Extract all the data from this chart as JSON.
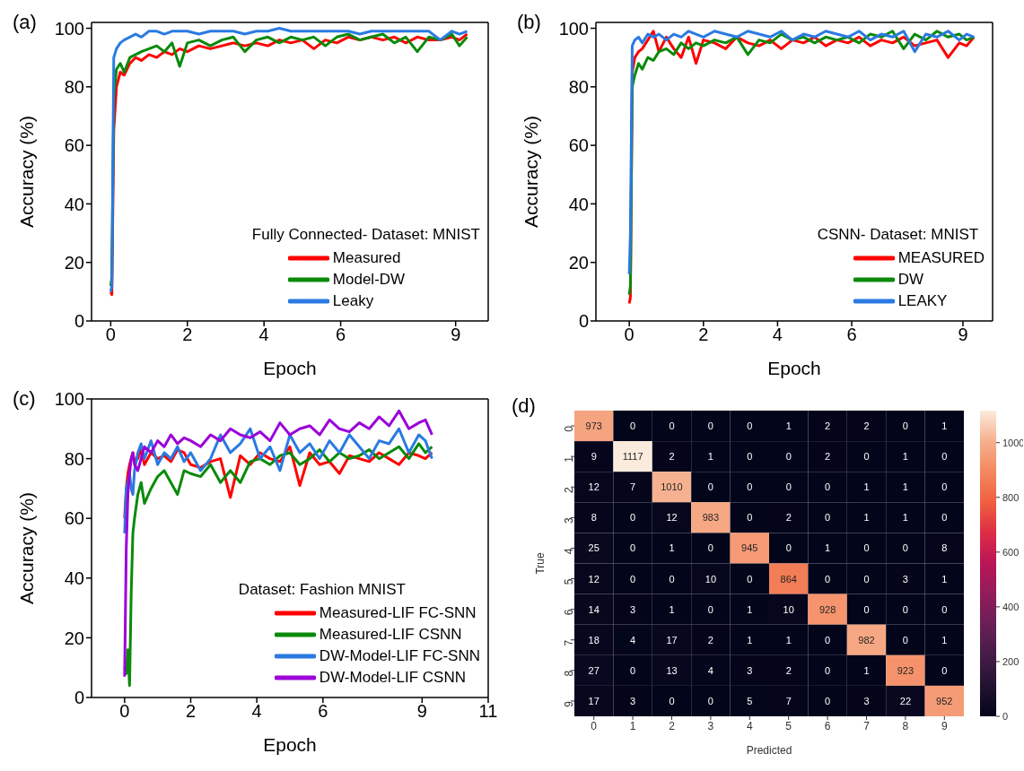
{
  "chart_data": [
    {
      "type": "line",
      "title": "(a)",
      "xlabel": "Epoch",
      "ylabel": "Accuracy (%)",
      "legend_title": "Fully Connected- Dataset: MNIST",
      "legend": "bottom right",
      "xlim": [
        -0.5,
        9.85
      ],
      "ylim": [
        0,
        102
      ],
      "xticks": [
        0,
        2,
        4,
        6,
        9
      ],
      "yticks": [
        0,
        20,
        40,
        60,
        80,
        100
      ],
      "x": [
        0,
        0.03,
        0.08,
        0.15,
        0.25,
        0.35,
        0.5,
        0.65,
        0.8,
        1.0,
        1.2,
        1.4,
        1.6,
        1.8,
        2.0,
        2.3,
        2.6,
        2.9,
        3.2,
        3.5,
        3.8,
        4.1,
        4.4,
        4.7,
        5.0,
        5.3,
        5.6,
        5.9,
        6.2,
        6.5,
        6.8,
        7.1,
        7.4,
        7.7,
        8.0,
        8.3,
        8.6,
        8.9,
        9.1,
        9.3
      ],
      "series": [
        {
          "name": "Measured",
          "color": "#ff0000",
          "values": [
            10,
            9,
            65,
            80,
            85,
            84,
            88,
            90,
            89,
            91,
            90,
            92,
            91,
            93,
            92,
            94,
            93,
            94,
            95,
            94,
            95,
            94,
            96,
            95,
            96,
            93,
            96,
            95,
            97,
            96,
            97,
            96,
            97,
            95,
            97,
            96,
            96,
            97,
            96,
            98
          ]
        },
        {
          "name": "Model-DW",
          "color": "#0a8a0a",
          "values": [
            12,
            15,
            76,
            86,
            88,
            85,
            90,
            91,
            92,
            93,
            94,
            92,
            95,
            87,
            95,
            96,
            94,
            96,
            97,
            92,
            96,
            97,
            95,
            97,
            96,
            97,
            94,
            97,
            98,
            96,
            97,
            98,
            95,
            97,
            92,
            97,
            96,
            98,
            94,
            97
          ]
        },
        {
          "name": "Leaky",
          "color": "#2a7ae2",
          "values": [
            10,
            12,
            90,
            93,
            95,
            96,
            97,
            98,
            97,
            99,
            99,
            98,
            99,
            99,
            99,
            98,
            99,
            99,
            99,
            98,
            99,
            99,
            100,
            99,
            99,
            99,
            99,
            99,
            99,
            98,
            99,
            99,
            99,
            99,
            99,
            99,
            96,
            99,
            98,
            99
          ]
        }
      ]
    },
    {
      "type": "line",
      "title": "(b)",
      "xlabel": "Epoch",
      "ylabel": "Accuracy (%)",
      "legend_title": "CSNN- Dataset: MNIST",
      "legend": "bottom right",
      "xlim": [
        -0.9,
        9.8
      ],
      "ylim": [
        0,
        102
      ],
      "xticks": [
        0,
        2,
        4,
        6,
        9
      ],
      "yticks": [
        0,
        20,
        40,
        60,
        80,
        100
      ],
      "x": [
        0,
        0.03,
        0.08,
        0.15,
        0.25,
        0.35,
        0.5,
        0.65,
        0.8,
        1.0,
        1.2,
        1.4,
        1.6,
        1.8,
        2.0,
        2.3,
        2.6,
        2.9,
        3.2,
        3.5,
        3.8,
        4.1,
        4.4,
        4.7,
        5.0,
        5.3,
        5.6,
        5.9,
        6.2,
        6.5,
        6.8,
        7.1,
        7.4,
        7.7,
        8.0,
        8.3,
        8.6,
        8.9,
        9.1,
        9.3
      ],
      "series": [
        {
          "name": "MEASURED",
          "color": "#ff0000",
          "values": [
            6,
            8,
            85,
            90,
            92,
            93,
            96,
            99,
            92,
            97,
            93,
            90,
            97,
            88,
            96,
            95,
            93,
            97,
            95,
            94,
            96,
            93,
            96,
            95,
            97,
            94,
            96,
            95,
            97,
            94,
            96,
            95,
            97,
            94,
            95,
            96,
            90,
            95,
            94,
            97
          ]
        },
        {
          "name": "DW",
          "color": "#0a8a0a",
          "values": [
            9,
            12,
            80,
            84,
            88,
            86,
            90,
            89,
            92,
            93,
            91,
            95,
            93,
            95,
            94,
            96,
            95,
            97,
            91,
            96,
            95,
            98,
            96,
            97,
            95,
            97,
            96,
            97,
            95,
            98,
            97,
            99,
            93,
            98,
            96,
            99,
            97,
            98,
            96,
            97
          ]
        },
        {
          "name": "LEAKY",
          "color": "#2a7ae2",
          "values": [
            16,
            30,
            94,
            96,
            97,
            95,
            98,
            97,
            98,
            96,
            98,
            97,
            99,
            98,
            97,
            99,
            98,
            97,
            99,
            98,
            97,
            99,
            96,
            98,
            97,
            99,
            98,
            97,
            99,
            96,
            98,
            97,
            99,
            92,
            98,
            97,
            99,
            96,
            98,
            97
          ]
        }
      ]
    },
    {
      "type": "line",
      "title": "(c)",
      "xlabel": "Epoch",
      "ylabel": "Accuracy (%)",
      "legend_title": "Dataset: Fashion MNIST",
      "legend": "bottom right",
      "xlim": [
        -1,
        11
      ],
      "ylim": [
        0,
        100
      ],
      "xticks": [
        0,
        2,
        4,
        6,
        9,
        11
      ],
      "yticks": [
        0,
        20,
        40,
        60,
        80,
        100
      ],
      "x": [
        0,
        0.05,
        0.1,
        0.15,
        0.2,
        0.25,
        0.3,
        0.4,
        0.5,
        0.6,
        0.8,
        1.0,
        1.2,
        1.4,
        1.6,
        1.8,
        2.0,
        2.3,
        2.6,
        2.9,
        3.2,
        3.5,
        3.8,
        4.1,
        4.4,
        4.7,
        5.0,
        5.3,
        5.6,
        5.9,
        6.2,
        6.5,
        6.8,
        7.1,
        7.4,
        7.7,
        8.0,
        8.3,
        8.6,
        8.9,
        9.1,
        9.3
      ],
      "series": [
        {
          "name": "Measured-LIF FC-SNN",
          "color": "#ff0000",
          "values": [
            60,
            70,
            75,
            78,
            80,
            82,
            79,
            80,
            83,
            78,
            82,
            80,
            81,
            79,
            83,
            82,
            78,
            77,
            79,
            80,
            67,
            81,
            78,
            82,
            80,
            79,
            84,
            71,
            82,
            78,
            79,
            75,
            81,
            80,
            79,
            82,
            80,
            78,
            82,
            81,
            80,
            82
          ]
        },
        {
          "name": "Measured-LIF CSNN",
          "color": "#0a8a0a",
          "values": [
            10,
            8,
            16,
            4,
            35,
            55,
            60,
            68,
            72,
            65,
            70,
            74,
            76,
            72,
            68,
            76,
            75,
            74,
            78,
            72,
            76,
            72,
            79,
            80,
            78,
            81,
            82,
            78,
            80,
            83,
            79,
            82,
            80,
            81,
            83,
            80,
            82,
            84,
            80,
            85,
            82,
            84
          ]
        },
        {
          "name": "DW-Model-LIF FC-SNN",
          "color": "#2a7ae2",
          "values": [
            55,
            70,
            72,
            75,
            70,
            68,
            76,
            82,
            85,
            80,
            86,
            78,
            82,
            80,
            84,
            79,
            82,
            76,
            80,
            88,
            82,
            85,
            90,
            80,
            84,
            76,
            88,
            82,
            85,
            80,
            86,
            82,
            88,
            84,
            80,
            86,
            85,
            90,
            82,
            88,
            86,
            80
          ]
        },
        {
          "name": "DW-Model-LIF CSNN",
          "color": "#9b00d9",
          "values": [
            7,
            50,
            68,
            75,
            80,
            82,
            78,
            76,
            80,
            84,
            82,
            86,
            84,
            88,
            85,
            87,
            86,
            84,
            88,
            86,
            90,
            88,
            87,
            89,
            86,
            92,
            88,
            90,
            91,
            88,
            93,
            90,
            89,
            92,
            90,
            94,
            91,
            96,
            90,
            92,
            93,
            88
          ]
        }
      ]
    },
    {
      "type": "heatmap",
      "title": "(d)",
      "xlabel": "Predicted",
      "ylabel": "True",
      "data_labels": true,
      "clim": [
        0,
        1117
      ],
      "cticks": [
        0,
        200,
        400,
        600,
        800,
        1000
      ],
      "categories": [
        "0",
        "1",
        "2",
        "3",
        "4",
        "5",
        "6",
        "7",
        "8",
        "9"
      ],
      "y_categories": [
        "0",
        "1",
        "2",
        "3",
        "4",
        "5",
        "6",
        "7",
        "8",
        "9"
      ],
      "cells": [
        [
          973,
          0,
          0,
          0,
          0,
          1,
          2,
          2,
          0,
          1
        ],
        [
          9,
          1117,
          2,
          1,
          0,
          0,
          2,
          0,
          1,
          0
        ],
        [
          12,
          7,
          1010,
          0,
          0,
          0,
          0,
          1,
          1,
          0
        ],
        [
          8,
          0,
          12,
          983,
          0,
          2,
          0,
          1,
          1,
          0
        ],
        [
          25,
          0,
          1,
          0,
          945,
          0,
          1,
          0,
          0,
          8
        ],
        [
          12,
          0,
          0,
          10,
          0,
          864,
          0,
          0,
          3,
          1
        ],
        [
          14,
          3,
          1,
          0,
          1,
          10,
          928,
          0,
          0,
          0
        ],
        [
          18,
          4,
          17,
          2,
          1,
          1,
          0,
          982,
          0,
          1
        ],
        [
          27,
          0,
          13,
          4,
          3,
          2,
          0,
          1,
          923,
          0
        ],
        [
          17,
          3,
          0,
          0,
          5,
          7,
          0,
          3,
          22,
          952
        ]
      ]
    }
  ]
}
